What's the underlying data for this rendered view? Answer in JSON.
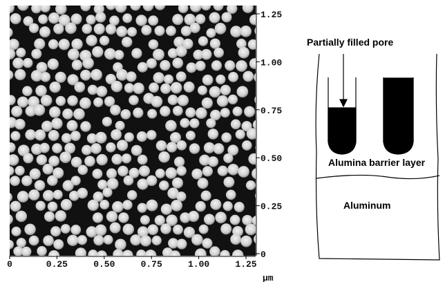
{
  "afm_image": {
    "x_ticks": [
      "0",
      "0.25",
      "0.50",
      "0.75",
      "1.00",
      "1.25"
    ],
    "y_ticks": [
      "1.25",
      "1.00",
      "0.75",
      "0.50",
      "0.25",
      "0"
    ],
    "unit": "µm"
  },
  "schematic": {
    "pore_label": "Partially filled pore",
    "barrier_label": "Alumina barrier layer",
    "substrate_label": "Aluminum"
  }
}
